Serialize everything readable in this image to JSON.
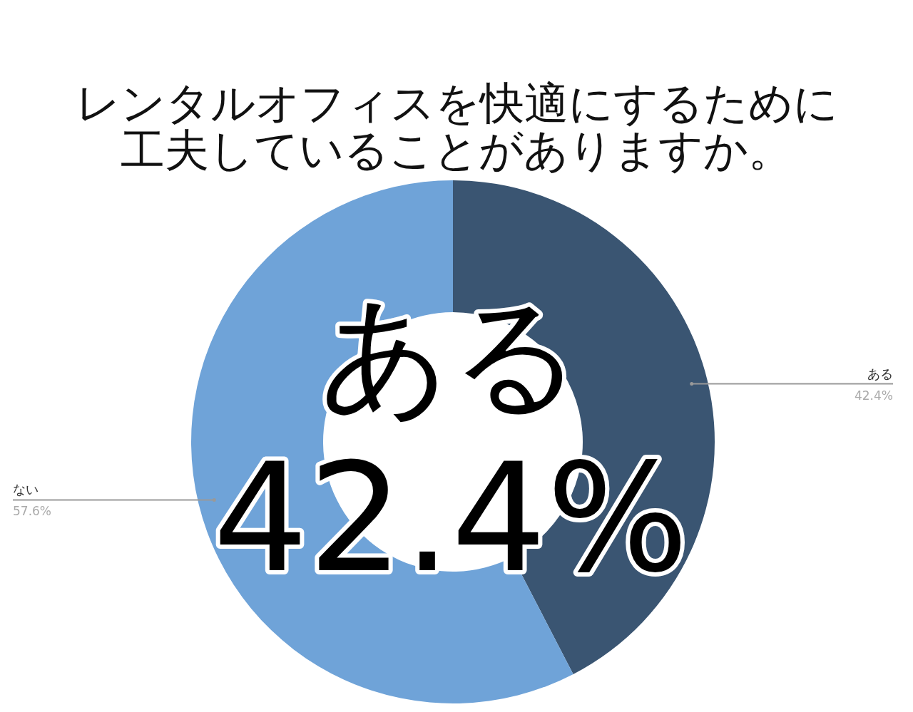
{
  "chart_data": {
    "type": "donut",
    "title": "レンタルオフィスを快適にするために工夫していることがありますか。",
    "categories": [
      "ある",
      "ない"
    ],
    "values": [
      42.4,
      57.6
    ],
    "colors": [
      "#3a5572",
      "#6fa3d8"
    ],
    "value_labels": [
      "42.4%",
      "57.6%"
    ],
    "annotations": [
      "ある",
      "42.4%"
    ]
  }
}
